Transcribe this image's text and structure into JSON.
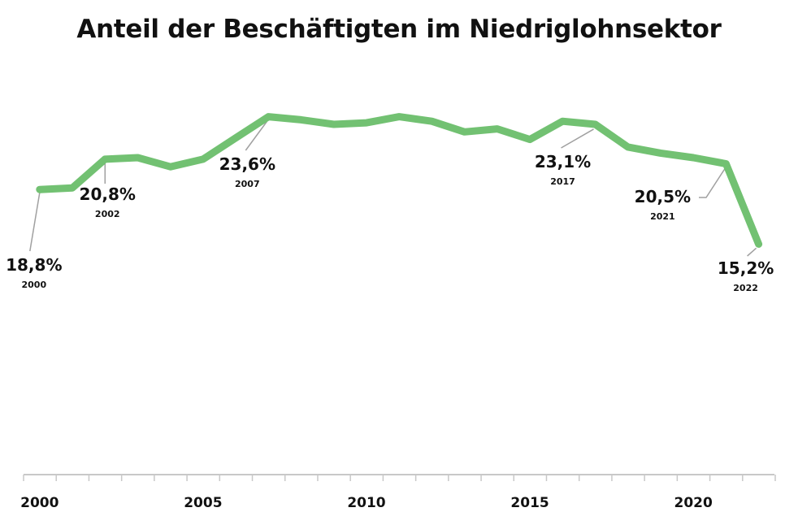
{
  "chart_data": {
    "type": "line",
    "title": "Anteil der Beschäftigten im Niedriglohnsektor",
    "x": [
      2000,
      2001,
      2002,
      2003,
      2004,
      2005,
      2006,
      2007,
      2008,
      2009,
      2010,
      2011,
      2012,
      2013,
      2014,
      2015,
      2016,
      2017,
      2018,
      2019,
      2020,
      2021,
      2022
    ],
    "series": [
      {
        "values": [
          18.8,
          18.9,
          20.8,
          20.9,
          20.3,
          20.8,
          22.2,
          23.6,
          23.4,
          23.1,
          23.2,
          23.6,
          23.3,
          22.6,
          22.8,
          22.1,
          23.3,
          23.1,
          21.6,
          21.2,
          20.9,
          20.5,
          15.2
        ],
        "color": "#72c172"
      }
    ],
    "xticks": [
      "2000",
      "2005",
      "2010",
      "2015",
      "2020"
    ],
    "annotations": [
      {
        "year": "2000",
        "value": "18,8%"
      },
      {
        "year": "2002",
        "value": "20,8%"
      },
      {
        "year": "2007",
        "value": "23,6%"
      },
      {
        "year": "2017",
        "value": "23,1%"
      },
      {
        "year": "2021",
        "value": "20,5%"
      },
      {
        "year": "2022",
        "value": "15,2%"
      }
    ],
    "xlim": [
      2000,
      2022
    ],
    "ylim": [
      0,
      25
    ],
    "grid": false,
    "axis_color": "#c8c8c8",
    "leader_color": "#a0a0a0"
  }
}
